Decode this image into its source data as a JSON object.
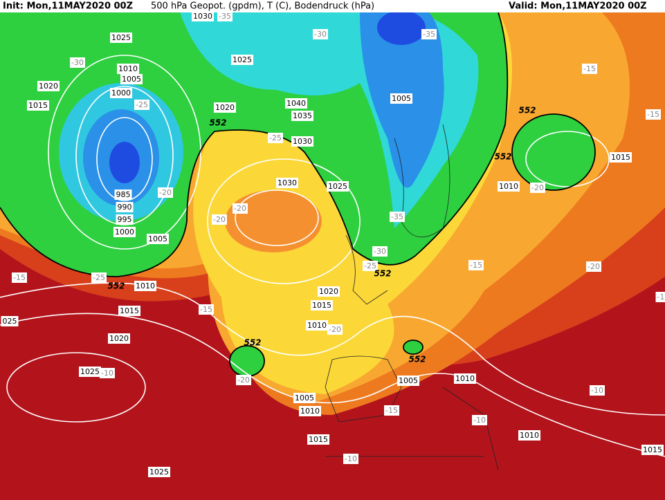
{
  "header": {
    "init": "Init: Mon,11MAY2020 00Z",
    "title": "500 hPa Geopot. (gpdm), T (C), Bodendruck (hPa)",
    "valid": "Valid: Mon,11MAY2020 00Z"
  },
  "isobar_labels": [
    "1030",
    "1025",
    "1025",
    "1010",
    "1005",
    "1020",
    "1000",
    "1015",
    "1020",
    "1040",
    "1035",
    "1005",
    "1030",
    "1030",
    "1025",
    "1010",
    "1015",
    "985",
    "990",
    "995",
    "1000",
    "1005",
    "1010",
    "1015",
    "1020",
    "1015",
    "1010",
    "1020",
    "1025",
    "1005",
    "1010",
    "1005",
    "1010",
    "1015",
    "1010",
    "1025",
    "1015",
    "025"
  ],
  "temperature_labels": [
    "-35",
    "-30",
    "-35",
    "-30",
    "-25",
    "-15",
    "-15",
    "-20",
    "-20",
    "-20",
    "-25",
    "-35",
    "-30",
    "-25",
    "-20",
    "-15",
    "-20",
    "-15",
    "-25",
    "-15",
    "-20",
    "-10",
    "-20",
    "-15",
    "-10",
    "-10",
    "-10",
    "-1"
  ],
  "geopotential_labels": [
    "552",
    "552",
    "552",
    "552",
    "552",
    "552",
    "552"
  ]
}
